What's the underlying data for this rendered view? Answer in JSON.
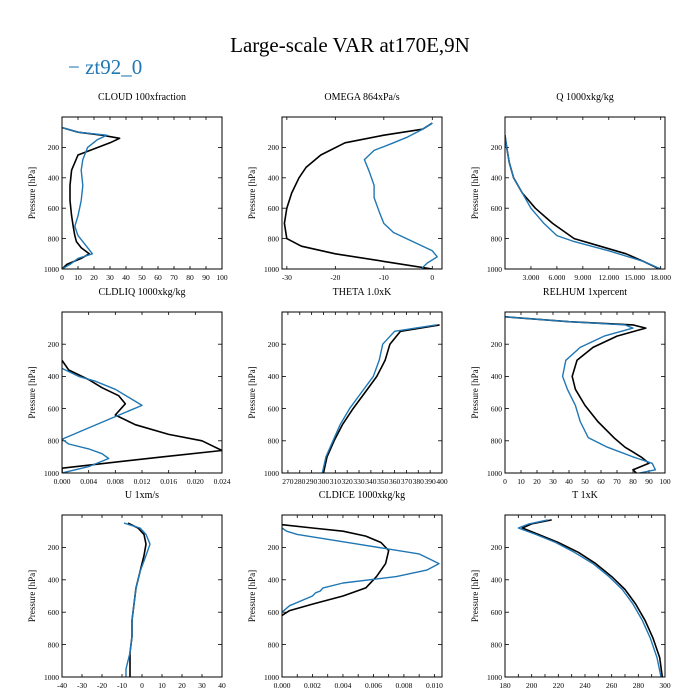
{
  "title": "Large-scale VAR at170E,9N",
  "legend": {
    "label": "zt92_0",
    "color": "#1f77b4",
    "marker": "−"
  },
  "colors": {
    "reference": "#000000",
    "model": "#1f77b4"
  },
  "chart_data": [
    {
      "type": "line",
      "title": "CLOUD  100xfraction",
      "xlim": [
        0,
        100
      ],
      "ylim": [
        1000,
        0
      ],
      "xticks": [
        0,
        10,
        20,
        30,
        40,
        50,
        60,
        70,
        80,
        90,
        100
      ],
      "xticklabels": [
        "0",
        "10",
        "20",
        "30",
        "40",
        "50",
        "60",
        "70",
        "80",
        "90",
        "100"
      ],
      "yticks": [
        200,
        400,
        600,
        800,
        1000
      ],
      "yticklabels": [
        "200",
        "400",
        "600",
        "800",
        "1000"
      ],
      "ylabel": "Pressure [hPa]",
      "series": [
        {
          "name": "reference",
          "x": [
            0,
            10,
            25,
            36,
            30,
            10,
            6,
            5,
            5,
            6,
            7,
            8,
            9,
            12,
            17,
            12,
            3,
            0
          ],
          "y": [
            70,
            100,
            120,
            140,
            170,
            250,
            350,
            450,
            550,
            650,
            720,
            780,
            820,
            860,
            900,
            930,
            970,
            1000
          ]
        },
        {
          "name": "zt92_0",
          "x": [
            0,
            10,
            28,
            22,
            16,
            13,
            12,
            13,
            12,
            10,
            8,
            10,
            13,
            16,
            19,
            10,
            5,
            0
          ],
          "y": [
            70,
            100,
            120,
            150,
            200,
            280,
            350,
            450,
            550,
            650,
            720,
            780,
            820,
            860,
            900,
            930,
            970,
            1000
          ]
        }
      ]
    },
    {
      "type": "line",
      "title": "OMEGA  864xPa/s",
      "xlim": [
        -31,
        2
      ],
      "ylim": [
        1000,
        0
      ],
      "xticks": [
        -30,
        -20,
        -10,
        0
      ],
      "xticklabels": [
        "-30",
        "-20",
        "-10",
        "0"
      ],
      "yticks": [
        200,
        400,
        600,
        800,
        1000
      ],
      "yticklabels": [
        "200",
        "400",
        "600",
        "800",
        "1000"
      ],
      "ylabel": "",
      "series": [
        {
          "name": "reference",
          "x": [
            0,
            -2,
            -10,
            -18,
            -23,
            -26,
            -27.5,
            -29,
            -30,
            -30.5,
            -30,
            -27,
            -20,
            -10,
            0
          ],
          "y": [
            40,
            80,
            120,
            170,
            250,
            330,
            400,
            500,
            600,
            700,
            800,
            850,
            900,
            950,
            1000
          ]
        },
        {
          "name": "zt92_0",
          "x": [
            0,
            -2,
            -5,
            -8,
            -12,
            -14,
            -13,
            -12,
            -12,
            -11,
            -10,
            -8,
            -4,
            0,
            1,
            -1,
            -2,
            -2
          ],
          "y": [
            40,
            80,
            130,
            170,
            220,
            280,
            360,
            450,
            530,
            620,
            700,
            760,
            820,
            880,
            920,
            960,
            990,
            1000
          ]
        }
      ]
    },
    {
      "type": "line",
      "title": "Q  1000xkg/kg",
      "xlim": [
        0,
        18.5
      ],
      "ylim": [
        1000,
        0
      ],
      "xticks": [
        3,
        6,
        9,
        12,
        15,
        18
      ],
      "xticklabels": [
        "3.000",
        "6.000",
        "9.000",
        "12.000",
        "15.000",
        "18.000"
      ],
      "yticks": [
        200,
        400,
        600,
        800,
        1000
      ],
      "yticklabels": [
        "200",
        "400",
        "600",
        "800",
        "1000"
      ],
      "ylabel": "",
      "series": [
        {
          "name": "reference",
          "x": [
            0,
            0.2,
            0.5,
            1,
            2,
            3.5,
            5.5,
            8,
            11,
            14,
            16,
            17.5,
            18
          ],
          "y": [
            120,
            200,
            300,
            400,
            500,
            600,
            700,
            800,
            850,
            900,
            950,
            990,
            1000
          ]
        },
        {
          "name": "zt92_0",
          "x": [
            0,
            0.2,
            0.5,
            1,
            2,
            3,
            4.5,
            6,
            8,
            12,
            16,
            18
          ],
          "y": [
            120,
            200,
            300,
            400,
            500,
            600,
            700,
            780,
            820,
            880,
            950,
            1000
          ]
        }
      ]
    },
    {
      "type": "line",
      "title": "CLDLIQ  1000xkg/kg",
      "xlim": [
        0,
        0.024
      ],
      "ylim": [
        1000,
        0
      ],
      "xticks": [
        0,
        0.004,
        0.008,
        0.012,
        0.016,
        0.02,
        0.024
      ],
      "xticklabels": [
        "0.000",
        "0.004",
        "0.008",
        "0.012",
        "0.016",
        "0.020",
        "0.024"
      ],
      "yticks": [
        200,
        400,
        600,
        800,
        1000
      ],
      "yticklabels": [
        "200",
        "400",
        "600",
        "800",
        "1000"
      ],
      "ylabel": "",
      "series": [
        {
          "name": "reference",
          "x": [
            0,
            0.001,
            0.004,
            0.006,
            0.0085,
            0.0095,
            0.008,
            0.011,
            0.016,
            0.021,
            0.024,
            0.015,
            0,
            0
          ],
          "y": [
            300,
            360,
            420,
            470,
            520,
            570,
            640,
            700,
            760,
            800,
            860,
            900,
            970,
            1000
          ]
        },
        {
          "name": "zt92_0",
          "x": [
            0,
            0.0025,
            0.005,
            0.008,
            0.012,
            0.008,
            0.004,
            0,
            0.001,
            0.004,
            0.006,
            0.007,
            0.004,
            0
          ],
          "y": [
            350,
            400,
            430,
            480,
            580,
            650,
            720,
            790,
            820,
            850,
            880,
            910,
            960,
            1000
          ]
        }
      ]
    },
    {
      "type": "line",
      "title": "THETA  1.0xK",
      "xlim": [
        265,
        400
      ],
      "ylim": [
        1000,
        0
      ],
      "xticks": [
        270,
        280,
        290,
        300,
        310,
        320,
        330,
        340,
        350,
        360,
        370,
        380,
        390,
        400
      ],
      "xticklabels": [
        "270",
        "280",
        "290",
        "300",
        "310",
        "320",
        "330",
        "340",
        "350",
        "360",
        "370",
        "380",
        "390",
        "400"
      ],
      "yticks": [
        200,
        400,
        600,
        800,
        1000
      ],
      "yticklabels": [
        "200",
        "400",
        "600",
        "800",
        "1000"
      ],
      "ylabel": "",
      "series": [
        {
          "name": "reference",
          "x": [
            300,
            303,
            309,
            316,
            325,
            335,
            345,
            352,
            356,
            365,
            398
          ],
          "y": [
            1000,
            900,
            800,
            700,
            600,
            500,
            400,
            300,
            200,
            120,
            80
          ]
        },
        {
          "name": "zt92_0",
          "x": [
            299,
            302,
            308,
            314,
            322,
            332,
            342,
            347,
            350,
            360,
            395
          ],
          "y": [
            1000,
            900,
            800,
            700,
            600,
            500,
            400,
            300,
            200,
            120,
            80
          ]
        }
      ]
    },
    {
      "type": "line",
      "title": "RELHUM  1xpercent",
      "xlim": [
        0,
        100
      ],
      "ylim": [
        1000,
        0
      ],
      "xticks": [
        0,
        10,
        20,
        30,
        40,
        50,
        60,
        70,
        80,
        90,
        100
      ],
      "xticklabels": [
        "0",
        "10",
        "20",
        "30",
        "40",
        "50",
        "60",
        "70",
        "80",
        "90",
        "100"
      ],
      "yticks": [
        200,
        400,
        600,
        800,
        1000
      ],
      "yticklabels": [
        "200",
        "400",
        "600",
        "800",
        "1000"
      ],
      "ylabel": "",
      "series": [
        {
          "name": "reference",
          "x": [
            0,
            40,
            80,
            88,
            70,
            55,
            45,
            42,
            44,
            50,
            58,
            68,
            75,
            85,
            90,
            80,
            82
          ],
          "y": [
            30,
            60,
            80,
            100,
            150,
            220,
            300,
            400,
            480,
            580,
            680,
            780,
            840,
            900,
            940,
            980,
            1000
          ]
        },
        {
          "name": "zt92_0",
          "x": [
            0,
            40,
            75,
            80,
            62,
            47,
            38,
            36,
            39,
            44,
            47,
            52,
            64,
            80,
            92,
            94,
            84
          ],
          "y": [
            30,
            60,
            80,
            100,
            150,
            220,
            300,
            400,
            480,
            580,
            680,
            780,
            840,
            900,
            940,
            980,
            1000
          ]
        }
      ]
    },
    {
      "type": "line",
      "title": "U  1xm/s",
      "xlim": [
        -40,
        40
      ],
      "ylim": [
        1000,
        0
      ],
      "xticks": [
        -40,
        -30,
        -20,
        -10,
        0,
        10,
        20,
        30,
        40
      ],
      "xticklabels": [
        "-40",
        "-30",
        "-20",
        "-10",
        "0",
        "10",
        "20",
        "30",
        "40"
      ],
      "yticks": [
        200,
        400,
        600,
        800,
        1000
      ],
      "yticklabels": [
        "200",
        "400",
        "600",
        "800",
        "1000"
      ],
      "ylabel": "",
      "series": [
        {
          "name": "reference",
          "x": [
            -7,
            -2,
            1,
            2,
            1,
            -1,
            -3,
            -4,
            -5,
            -5,
            -6,
            -6,
            -6
          ],
          "y": [
            50,
            80,
            120,
            180,
            250,
            350,
            450,
            550,
            650,
            750,
            850,
            950,
            1000
          ]
        },
        {
          "name": "zt92_0",
          "x": [
            -9,
            -1,
            2,
            4,
            2,
            -1,
            -3,
            -4,
            -5,
            -5,
            -6,
            -7,
            -8,
            -8
          ],
          "y": [
            50,
            80,
            120,
            180,
            250,
            350,
            450,
            550,
            650,
            750,
            850,
            900,
            950,
            1000
          ]
        }
      ]
    },
    {
      "type": "line",
      "title": "CLDICE  1000xkg/kg",
      "xlim": [
        0,
        0.0105
      ],
      "ylim": [
        1000,
        0
      ],
      "xticks": [
        0,
        0.001,
        0.002,
        0.003,
        0.004,
        0.005,
        0.006,
        0.007,
        0.008,
        0.009,
        0.01
      ],
      "xticklabels": [
        "0.000",
        "",
        "0.002",
        "",
        "0.004",
        "",
        "0.006",
        "",
        "0.008",
        "",
        "0.010"
      ],
      "yticks": [
        200,
        400,
        600,
        800,
        1000
      ],
      "yticklabels": [
        "200",
        "400",
        "600",
        "800",
        "1000"
      ],
      "ylabel": "",
      "series": [
        {
          "name": "reference",
          "x": [
            0,
            0.002,
            0.004,
            0.0055,
            0.0065,
            0.007,
            0.0068,
            0.0062,
            0.0055,
            0.004,
            0.002,
            0.0005,
            0
          ],
          "y": [
            60,
            80,
            100,
            130,
            170,
            220,
            300,
            380,
            450,
            500,
            550,
            590,
            620
          ]
        },
        {
          "name": "zt92_0",
          "x": [
            0,
            0.0003,
            0.001,
            0.005,
            0.009,
            0.0103,
            0.0095,
            0.0075,
            0.004,
            0.0027,
            0.0025,
            0.0022,
            0.002,
            0.0005,
            0
          ],
          "y": [
            80,
            100,
            120,
            180,
            240,
            300,
            340,
            380,
            420,
            450,
            470,
            480,
            500,
            560,
            600
          ]
        }
      ]
    },
    {
      "type": "line",
      "title": "T  1xK",
      "xlim": [
        180,
        300
      ],
      "ylim": [
        1000,
        0
      ],
      "xticks": [
        180,
        190,
        200,
        210,
        220,
        230,
        240,
        250,
        260,
        270,
        280,
        290,
        300
      ],
      "xticklabels": [
        "180",
        "",
        "200",
        "",
        "220",
        "",
        "240",
        "",
        "260",
        "",
        "280",
        "",
        "300"
      ],
      "yticks": [
        200,
        400,
        600,
        800,
        1000
      ],
      "yticklabels": [
        "200",
        "400",
        "600",
        "800",
        "1000"
      ],
      "ylabel": "",
      "series": [
        {
          "name": "reference",
          "x": [
            215,
            200,
            193,
            205,
            220,
            235,
            248,
            260,
            270,
            278,
            285,
            291,
            296,
            298
          ],
          "y": [
            30,
            55,
            80,
            120,
            170,
            230,
            300,
            380,
            460,
            550,
            650,
            760,
            880,
            1000
          ]
        },
        {
          "name": "zt92_0",
          "x": [
            212,
            198,
            190,
            203,
            218,
            232,
            246,
            258,
            268,
            276,
            283,
            289,
            294,
            297
          ],
          "y": [
            30,
            55,
            80,
            120,
            170,
            230,
            300,
            380,
            460,
            550,
            650,
            760,
            880,
            1000
          ]
        }
      ]
    }
  ]
}
